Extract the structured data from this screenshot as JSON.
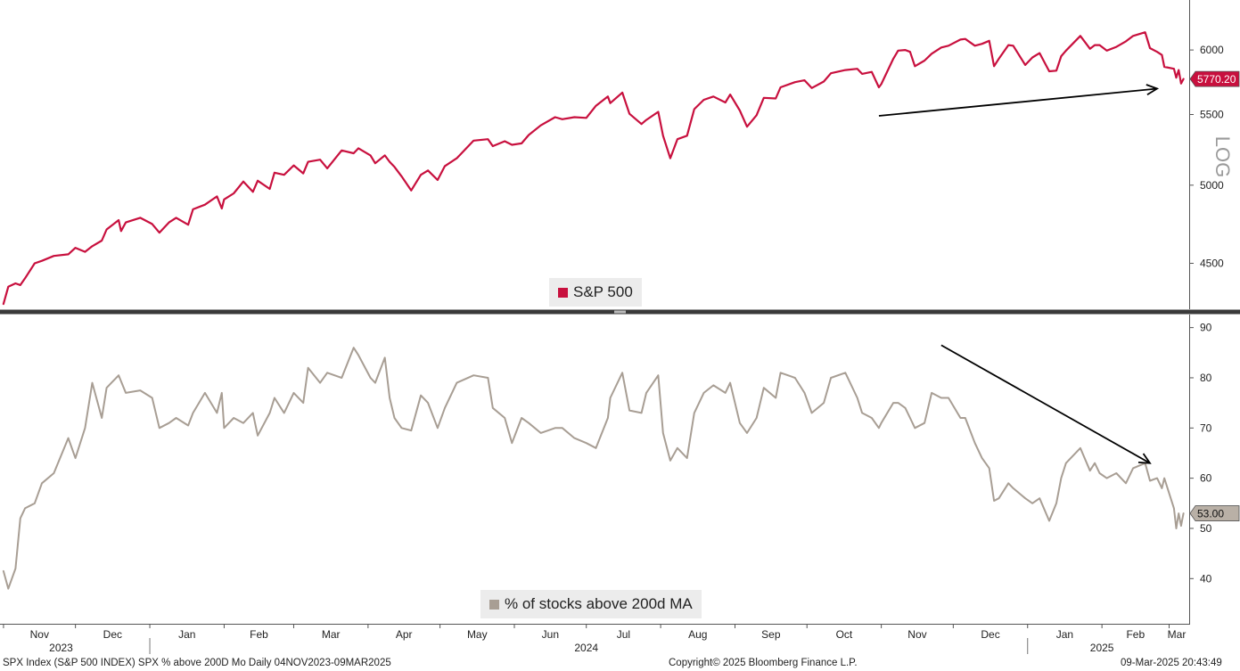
{
  "chart_data": [
    {
      "type": "line",
      "name": "top-panel",
      "legend": "S&P 500",
      "color": "#c8103e",
      "scale": "log",
      "y_axis_label": "LOG",
      "y_ticks": [
        4500,
        5000,
        5500,
        6000
      ],
      "ylim": [
        4240,
        6380
      ],
      "last_value_label": "5770.20",
      "last_value": 5770.2,
      "x_range": [
        "2023-11-04",
        "2025-03-09"
      ],
      "series_points": [
        [
          "2023-11-01",
          4260
        ],
        [
          "2023-11-03",
          4360
        ],
        [
          "2023-11-06",
          4380
        ],
        [
          "2023-11-08",
          4370
        ],
        [
          "2023-11-10",
          4410
        ],
        [
          "2023-11-14",
          4500
        ],
        [
          "2023-11-17",
          4515
        ],
        [
          "2023-11-22",
          4545
        ],
        [
          "2023-11-28",
          4555
        ],
        [
          "2023-12-01",
          4595
        ],
        [
          "2023-12-05",
          4570
        ],
        [
          "2023-12-08",
          4605
        ],
        [
          "2023-12-12",
          4640
        ],
        [
          "2023-12-14",
          4710
        ],
        [
          "2023-12-19",
          4770
        ],
        [
          "2023-12-20",
          4700
        ],
        [
          "2023-12-22",
          4755
        ],
        [
          "2023-12-28",
          4785
        ],
        [
          "2024-01-02",
          4745
        ],
        [
          "2024-01-05",
          4690
        ],
        [
          "2024-01-09",
          4755
        ],
        [
          "2024-01-12",
          4785
        ],
        [
          "2024-01-17",
          4740
        ],
        [
          "2024-01-19",
          4840
        ],
        [
          "2024-01-24",
          4870
        ],
        [
          "2024-01-29",
          4925
        ],
        [
          "2024-01-31",
          4845
        ],
        [
          "2024-02-01",
          4905
        ],
        [
          "2024-02-05",
          4945
        ],
        [
          "2024-02-09",
          5025
        ],
        [
          "2024-02-13",
          4955
        ],
        [
          "2024-02-15",
          5030
        ],
        [
          "2024-02-20",
          4975
        ],
        [
          "2024-02-22",
          5085
        ],
        [
          "2024-02-26",
          5070
        ],
        [
          "2024-03-01",
          5135
        ],
        [
          "2024-03-05",
          5080
        ],
        [
          "2024-03-07",
          5160
        ],
        [
          "2024-03-12",
          5175
        ],
        [
          "2024-03-15",
          5115
        ],
        [
          "2024-03-21",
          5240
        ],
        [
          "2024-03-26",
          5220
        ],
        [
          "2024-03-28",
          5255
        ],
        [
          "2024-04-02",
          5205
        ],
        [
          "2024-04-04",
          5150
        ],
        [
          "2024-04-08",
          5205
        ],
        [
          "2024-04-10",
          5160
        ],
        [
          "2024-04-12",
          5125
        ],
        [
          "2024-04-15",
          5060
        ],
        [
          "2024-04-19",
          4965
        ],
        [
          "2024-04-23",
          5070
        ],
        [
          "2024-04-26",
          5100
        ],
        [
          "2024-04-30",
          5035
        ],
        [
          "2024-05-03",
          5130
        ],
        [
          "2024-05-08",
          5185
        ],
        [
          "2024-05-15",
          5310
        ],
        [
          "2024-05-21",
          5320
        ],
        [
          "2024-05-23",
          5270
        ],
        [
          "2024-05-28",
          5305
        ],
        [
          "2024-05-31",
          5280
        ],
        [
          "2024-06-04",
          5290
        ],
        [
          "2024-06-07",
          5350
        ],
        [
          "2024-06-12",
          5420
        ],
        [
          "2024-06-18",
          5480
        ],
        [
          "2024-06-21",
          5465
        ],
        [
          "2024-06-26",
          5480
        ],
        [
          "2024-07-01",
          5475
        ],
        [
          "2024-07-05",
          5565
        ],
        [
          "2024-07-10",
          5635
        ],
        [
          "2024-07-11",
          5585
        ],
        [
          "2024-07-16",
          5665
        ],
        [
          "2024-07-19",
          5505
        ],
        [
          "2024-07-24",
          5430
        ],
        [
          "2024-07-26",
          5460
        ],
        [
          "2024-07-31",
          5520
        ],
        [
          "2024-08-02",
          5345
        ],
        [
          "2024-08-05",
          5185
        ],
        [
          "2024-08-08",
          5320
        ],
        [
          "2024-08-12",
          5345
        ],
        [
          "2024-08-15",
          5540
        ],
        [
          "2024-08-19",
          5610
        ],
        [
          "2024-08-23",
          5635
        ],
        [
          "2024-08-28",
          5590
        ],
        [
          "2024-08-30",
          5650
        ],
        [
          "2024-09-03",
          5530
        ],
        [
          "2024-09-06",
          5410
        ],
        [
          "2024-09-10",
          5495
        ],
        [
          "2024-09-13",
          5625
        ],
        [
          "2024-09-18",
          5620
        ],
        [
          "2024-09-20",
          5705
        ],
        [
          "2024-09-26",
          5745
        ],
        [
          "2024-09-30",
          5760
        ],
        [
          "2024-10-03",
          5700
        ],
        [
          "2024-10-08",
          5750
        ],
        [
          "2024-10-11",
          5815
        ],
        [
          "2024-10-17",
          5840
        ],
        [
          "2024-10-22",
          5850
        ],
        [
          "2024-10-24",
          5810
        ],
        [
          "2024-10-28",
          5825
        ],
        [
          "2024-10-31",
          5705
        ],
        [
          "2024-11-01",
          5730
        ],
        [
          "2024-11-06",
          5930
        ],
        [
          "2024-11-08",
          5995
        ],
        [
          "2024-11-11",
          6000
        ],
        [
          "2024-11-13",
          5985
        ],
        [
          "2024-11-15",
          5870
        ],
        [
          "2024-11-19",
          5915
        ],
        [
          "2024-11-22",
          5970
        ],
        [
          "2024-11-26",
          6020
        ],
        [
          "2024-11-29",
          6035
        ],
        [
          "2024-12-04",
          6085
        ],
        [
          "2024-12-06",
          6090
        ],
        [
          "2024-12-10",
          6035
        ],
        [
          "2024-12-13",
          6050
        ],
        [
          "2024-12-16",
          6075
        ],
        [
          "2024-12-18",
          5870
        ],
        [
          "2024-12-20",
          5930
        ],
        [
          "2024-12-24",
          6040
        ],
        [
          "2024-12-26",
          6035
        ],
        [
          "2024-12-31",
          5880
        ],
        [
          "2025-01-03",
          5940
        ],
        [
          "2025-01-06",
          5975
        ],
        [
          "2025-01-10",
          5830
        ],
        [
          "2025-01-13",
          5835
        ],
        [
          "2025-01-15",
          5950
        ],
        [
          "2025-01-17",
          5995
        ],
        [
          "2025-01-23",
          6115
        ],
        [
          "2025-01-27",
          6010
        ],
        [
          "2025-01-29",
          6040
        ],
        [
          "2025-01-31",
          6040
        ],
        [
          "2025-02-03",
          5995
        ],
        [
          "2025-02-07",
          6025
        ],
        [
          "2025-02-11",
          6070
        ],
        [
          "2025-02-14",
          6115
        ],
        [
          "2025-02-19",
          6145
        ],
        [
          "2025-02-21",
          6015
        ],
        [
          "2025-02-24",
          5985
        ],
        [
          "2025-02-26",
          5960
        ],
        [
          "2025-02-27",
          5865
        ],
        [
          "2025-03-03",
          5850
        ],
        [
          "2025-03-04",
          5780
        ],
        [
          "2025-03-05",
          5840
        ],
        [
          "2025-03-06",
          5735
        ],
        [
          "2025-03-07",
          5770
        ]
      ]
    },
    {
      "type": "line",
      "name": "bottom-panel",
      "legend": "% of stocks above 200d MA",
      "color": "#a89e94",
      "y_ticks": [
        40,
        50,
        60,
        70,
        80,
        90
      ],
      "ylim": [
        31,
        91
      ],
      "last_value_label": "53.00",
      "last_value": 53,
      "series_points": [
        [
          "2023-11-01",
          41.5
        ],
        [
          "2023-11-03",
          38
        ],
        [
          "2023-11-06",
          42
        ],
        [
          "2023-11-08",
          52
        ],
        [
          "2023-11-10",
          54
        ],
        [
          "2023-11-14",
          55
        ],
        [
          "2023-11-17",
          59
        ],
        [
          "2023-11-22",
          61
        ],
        [
          "2023-11-28",
          68
        ],
        [
          "2023-12-01",
          64
        ],
        [
          "2023-12-05",
          70
        ],
        [
          "2023-12-08",
          79
        ],
        [
          "2023-12-12",
          72
        ],
        [
          "2023-12-14",
          78
        ],
        [
          "2023-12-19",
          80.5
        ],
        [
          "2023-12-22",
          77
        ],
        [
          "2023-12-28",
          77.5
        ],
        [
          "2024-01-02",
          76
        ],
        [
          "2024-01-05",
          70
        ],
        [
          "2024-01-09",
          71
        ],
        [
          "2024-01-12",
          72
        ],
        [
          "2024-01-17",
          70.5
        ],
        [
          "2024-01-19",
          73
        ],
        [
          "2024-01-24",
          77
        ],
        [
          "2024-01-29",
          73
        ],
        [
          "2024-01-31",
          77
        ],
        [
          "2024-02-01",
          70
        ],
        [
          "2024-02-05",
          72
        ],
        [
          "2024-02-09",
          71
        ],
        [
          "2024-02-13",
          73
        ],
        [
          "2024-02-15",
          68.5
        ],
        [
          "2024-02-20",
          73
        ],
        [
          "2024-02-22",
          76
        ],
        [
          "2024-02-26",
          73
        ],
        [
          "2024-03-01",
          77
        ],
        [
          "2024-03-05",
          75
        ],
        [
          "2024-03-07",
          82
        ],
        [
          "2024-03-12",
          79
        ],
        [
          "2024-03-15",
          81
        ],
        [
          "2024-03-21",
          80
        ],
        [
          "2024-03-26",
          86
        ],
        [
          "2024-03-28",
          84.5
        ],
        [
          "2024-04-02",
          80
        ],
        [
          "2024-04-04",
          79
        ],
        [
          "2024-04-08",
          84
        ],
        [
          "2024-04-10",
          76
        ],
        [
          "2024-04-12",
          72
        ],
        [
          "2024-04-15",
          70
        ],
        [
          "2024-04-19",
          69.5
        ],
        [
          "2024-04-23",
          76.5
        ],
        [
          "2024-04-26",
          75
        ],
        [
          "2024-04-30",
          70
        ],
        [
          "2024-05-03",
          74
        ],
        [
          "2024-05-08",
          79
        ],
        [
          "2024-05-15",
          80.5
        ],
        [
          "2024-05-21",
          80
        ],
        [
          "2024-05-23",
          74
        ],
        [
          "2024-05-28",
          72
        ],
        [
          "2024-05-31",
          67
        ],
        [
          "2024-06-04",
          72
        ],
        [
          "2024-06-07",
          71
        ],
        [
          "2024-06-12",
          69
        ],
        [
          "2024-06-18",
          70
        ],
        [
          "2024-06-21",
          70
        ],
        [
          "2024-06-26",
          68
        ],
        [
          "2024-07-01",
          67
        ],
        [
          "2024-07-05",
          66
        ],
        [
          "2024-07-10",
          72
        ],
        [
          "2024-07-11",
          76
        ],
        [
          "2024-07-16",
          81
        ],
        [
          "2024-07-19",
          73.5
        ],
        [
          "2024-07-24",
          73
        ],
        [
          "2024-07-26",
          77
        ],
        [
          "2024-07-31",
          80.5
        ],
        [
          "2024-08-02",
          69
        ],
        [
          "2024-08-05",
          63.5
        ],
        [
          "2024-08-08",
          66
        ],
        [
          "2024-08-12",
          64
        ],
        [
          "2024-08-15",
          73
        ],
        [
          "2024-08-19",
          77
        ],
        [
          "2024-08-23",
          78.5
        ],
        [
          "2024-08-28",
          77
        ],
        [
          "2024-08-30",
          79
        ],
        [
          "2024-09-03",
          71
        ],
        [
          "2024-09-06",
          69
        ],
        [
          "2024-09-10",
          72
        ],
        [
          "2024-09-13",
          78
        ],
        [
          "2024-09-18",
          76
        ],
        [
          "2024-09-20",
          81
        ],
        [
          "2024-09-26",
          80
        ],
        [
          "2024-09-30",
          77
        ],
        [
          "2024-10-03",
          73
        ],
        [
          "2024-10-08",
          75
        ],
        [
          "2024-10-11",
          80
        ],
        [
          "2024-10-17",
          81
        ],
        [
          "2024-10-22",
          76
        ],
        [
          "2024-10-24",
          73
        ],
        [
          "2024-10-28",
          72
        ],
        [
          "2024-10-31",
          70
        ],
        [
          "2024-11-01",
          71
        ],
        [
          "2024-11-06",
          75
        ],
        [
          "2024-11-08",
          75
        ],
        [
          "2024-11-11",
          74
        ],
        [
          "2024-11-13",
          72
        ],
        [
          "2024-11-15",
          70
        ],
        [
          "2024-11-19",
          71
        ],
        [
          "2024-11-22",
          77
        ],
        [
          "2024-11-26",
          76
        ],
        [
          "2024-11-29",
          76
        ],
        [
          "2024-12-04",
          72
        ],
        [
          "2024-12-06",
          72
        ],
        [
          "2024-12-10",
          67
        ],
        [
          "2024-12-13",
          64
        ],
        [
          "2024-12-16",
          62
        ],
        [
          "2024-12-18",
          55.5
        ],
        [
          "2024-12-20",
          56
        ],
        [
          "2024-12-24",
          59
        ],
        [
          "2024-12-26",
          58
        ],
        [
          "2024-12-31",
          56
        ],
        [
          "2025-01-03",
          55
        ],
        [
          "2025-01-06",
          56
        ],
        [
          "2025-01-10",
          51.5
        ],
        [
          "2025-01-13",
          55
        ],
        [
          "2025-01-15",
          60
        ],
        [
          "2025-01-17",
          63
        ],
        [
          "2025-01-23",
          66
        ],
        [
          "2025-01-27",
          61.5
        ],
        [
          "2025-01-29",
          63
        ],
        [
          "2025-01-31",
          61
        ],
        [
          "2025-02-03",
          60
        ],
        [
          "2025-02-07",
          61
        ],
        [
          "2025-02-11",
          59
        ],
        [
          "2025-02-14",
          62
        ],
        [
          "2025-02-19",
          63
        ],
        [
          "2025-02-21",
          59.5
        ],
        [
          "2025-02-24",
          60
        ],
        [
          "2025-02-26",
          58
        ],
        [
          "2025-02-27",
          60
        ],
        [
          "2025-03-03",
          54
        ],
        [
          "2025-03-04",
          50
        ],
        [
          "2025-03-05",
          53
        ],
        [
          "2025-03-06",
          50.5
        ],
        [
          "2025-03-07",
          53
        ]
      ]
    }
  ],
  "x_axis": {
    "months": [
      {
        "label": "Nov",
        "date": "2023-11-01"
      },
      {
        "label": "Dec",
        "date": "2023-12-01"
      },
      {
        "label": "Jan",
        "date": "2024-01-01"
      },
      {
        "label": "Feb",
        "date": "2024-02-01"
      },
      {
        "label": "Mar",
        "date": "2024-03-01"
      },
      {
        "label": "Apr",
        "date": "2024-04-01"
      },
      {
        "label": "May",
        "date": "2024-05-01"
      },
      {
        "label": "Jun",
        "date": "2024-06-01"
      },
      {
        "label": "Jul",
        "date": "2024-07-01"
      },
      {
        "label": "Aug",
        "date": "2024-08-01"
      },
      {
        "label": "Sep",
        "date": "2024-09-01"
      },
      {
        "label": "Oct",
        "date": "2024-10-01"
      },
      {
        "label": "Nov",
        "date": "2024-11-01"
      },
      {
        "label": "Dec",
        "date": "2024-12-01"
      },
      {
        "label": "Jan",
        "date": "2025-01-01"
      },
      {
        "label": "Feb",
        "date": "2025-02-01"
      },
      {
        "label": "Mar",
        "date": "2025-03-01"
      }
    ],
    "years": [
      {
        "label": "2023",
        "date": "2023-11-25"
      },
      {
        "label": "2024",
        "date": "2024-07-01"
      },
      {
        "label": "2025",
        "date": "2025-02-01"
      }
    ]
  },
  "annotations": {
    "top_arrow": {
      "from": [
        "2024-10-31",
        5490
      ],
      "to": [
        "2025-02-24",
        5695
      ]
    },
    "bottom_arrow": {
      "from": [
        "2024-11-26",
        86.5
      ],
      "to": [
        "2025-02-21",
        63
      ]
    }
  },
  "footer": {
    "left": "SPX Index (S&P 500 INDEX) SPX % above 200D Mo  Daily 04NOV2023-09MAR2025",
    "center": "Copyright© 2025 Bloomberg Finance L.P.",
    "right": "09-Mar-2025 20:43:49"
  }
}
